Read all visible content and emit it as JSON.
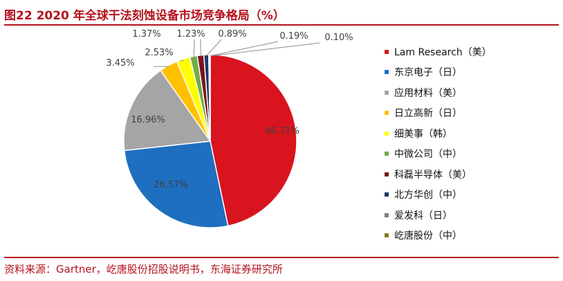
{
  "header": {
    "title": "图22  2020 年全球干法刻蚀设备市场竞争格局（%）"
  },
  "footer": {
    "source": "资料来源：Gartner，屹唐股份招股说明书，东海证券研究所"
  },
  "chart_data": {
    "type": "pie",
    "title": "图22  2020 年全球干法刻蚀设备市场竞争格局（%）",
    "unit": "%",
    "legend_position": "right",
    "series": [
      {
        "categories": [
          "Lam Research（美）",
          "东京电子（日）",
          "应用材料（美）",
          "日立高新（日）",
          "细美事（韩）",
          "中微公司（中）",
          "科磊半导体（美）",
          "北方华创（中）",
          "爱发科（日）",
          "屹唐股份（中）"
        ],
        "values": [
          46.71,
          26.57,
          16.96,
          3.45,
          2.53,
          1.37,
          1.23,
          0.89,
          0.19,
          0.1
        ],
        "labels": [
          "46.71%",
          "26.57%",
          "16.96%",
          "3.45%",
          "2.53%",
          "1.37%",
          "1.23%",
          "0.89%",
          "0.19%",
          "0.10%"
        ],
        "colors": [
          "#d9141e",
          "#1f6fc0",
          "#a5a5a5",
          "#ffc000",
          "#ffff00",
          "#70ad47",
          "#7b1220",
          "#1f3864",
          "#7f7f7f",
          "#8a7a1a"
        ]
      }
    ]
  }
}
